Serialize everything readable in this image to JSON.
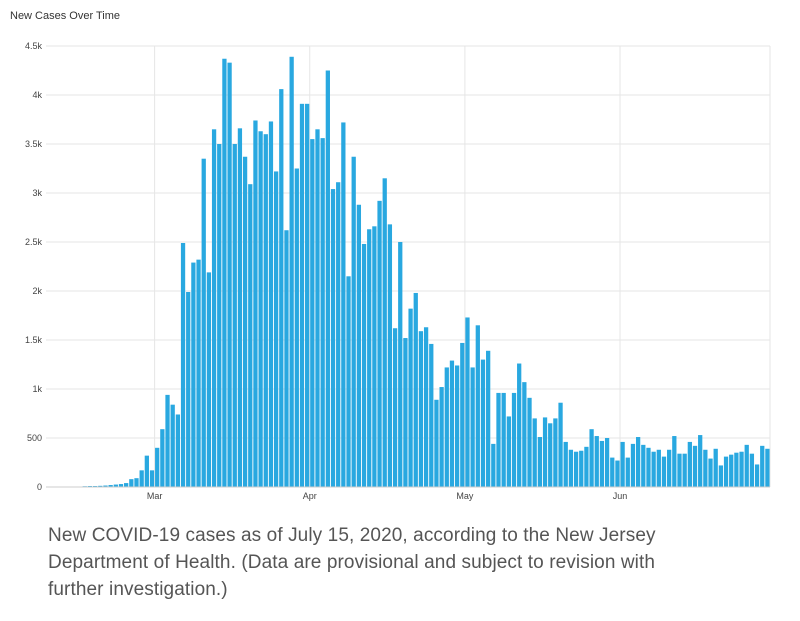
{
  "chart_data": {
    "type": "bar",
    "title": "New Cases Over Time",
    "xlabel": "",
    "ylabel": "",
    "ylim": [
      0,
      4500
    ],
    "grid": true,
    "y_ticks": [
      {
        "value": 0,
        "label": "0"
      },
      {
        "value": 500,
        "label": "500"
      },
      {
        "value": 1000,
        "label": "1k"
      },
      {
        "value": 1500,
        "label": "1.5k"
      },
      {
        "value": 2000,
        "label": "2k"
      },
      {
        "value": 2500,
        "label": "2.5k"
      },
      {
        "value": 3000,
        "label": "3k"
      },
      {
        "value": 3500,
        "label": "3.5k"
      },
      {
        "value": 4000,
        "label": "4k"
      },
      {
        "value": 4500,
        "label": "4.5k"
      }
    ],
    "x_ticks": [
      {
        "index": 21,
        "label": "Mar"
      },
      {
        "index": 51,
        "label": "Apr"
      },
      {
        "index": 81,
        "label": "May"
      },
      {
        "index": 111,
        "label": "Jun"
      }
    ],
    "bar_color": "#29a8e0",
    "series": [
      {
        "values": [
          5,
          5,
          5,
          5,
          5,
          5,
          5,
          8,
          10,
          10,
          12,
          15,
          20,
          25,
          30,
          40,
          80,
          90,
          170,
          320,
          170,
          400,
          590,
          940,
          840,
          740,
          2490,
          1990,
          2290,
          2320,
          3350,
          2190,
          3650,
          3500,
          4370,
          4330,
          3500,
          3660,
          3370,
          3090,
          3740,
          3630,
          3600,
          3730,
          3220,
          4060,
          2620,
          4390,
          3250,
          3910,
          3910,
          3550,
          3650,
          3560,
          4250,
          3040,
          3110,
          3720,
          2150,
          3370,
          2880,
          2480,
          2630,
          2660,
          2920,
          3150,
          2680,
          1620,
          2500,
          1520,
          1820,
          1980,
          1590,
          1630,
          1460,
          890,
          1020,
          1220,
          1290,
          1240,
          1470,
          1730,
          1220,
          1650,
          1300,
          1390,
          440,
          960,
          960,
          720,
          960,
          1260,
          1070,
          910,
          700,
          510,
          710,
          650,
          700,
          860,
          460,
          380,
          360,
          370,
          410,
          590,
          520,
          470,
          500,
          300,
          270,
          460,
          300,
          440,
          510,
          430,
          400,
          360,
          380,
          310,
          380,
          520,
          340,
          340,
          460,
          420,
          530,
          380,
          290,
          390,
          220,
          310,
          330,
          350,
          360,
          430,
          340,
          230,
          420,
          390
        ]
      }
    ]
  },
  "caption": "New COVID-19 cases as of July 15, 2020, according to the New Jersey Department of Health. (Data are provisional and subject to revision with further investigation.)"
}
